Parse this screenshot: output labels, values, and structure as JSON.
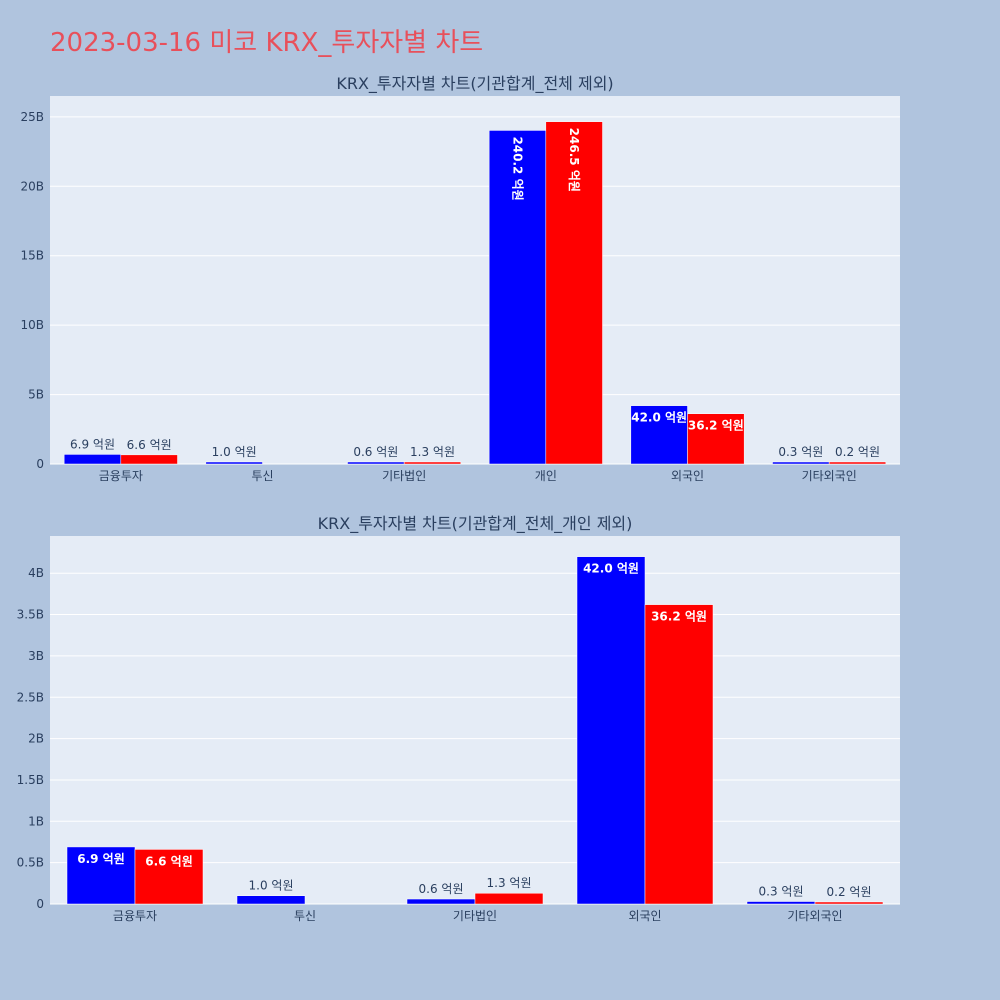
{
  "page": {
    "title": "2023-03-16 미코 KRX_투자자별 차트",
    "title_color": "#e8505b",
    "background": "#b0c4de"
  },
  "colors": {
    "series_1": "#0000ff",
    "series_2": "#ff0000",
    "plot_background": "#e5ecf6"
  },
  "chart_data": [
    {
      "type": "bar",
      "title": "KRX_투자자별 차트(기관합계_전체 제외)",
      "categories": [
        "금융투자",
        "투신",
        "기타법인",
        "개인",
        "외국인",
        "기타외국인"
      ],
      "series": [
        {
          "color": "#0000ff",
          "values": [
            690000000,
            100000000,
            60000000,
            24020000000,
            4200000000,
            30000000
          ],
          "labels": [
            "6.9 억원",
            "1.0 억원",
            "0.6 억원",
            "240.2 억원",
            "42.0 억원",
            "0.3 억원"
          ]
        },
        {
          "color": "#ff0000",
          "values": [
            660000000,
            0,
            130000000,
            24650000000,
            3620000000,
            20000000
          ],
          "labels": [
            "6.6 억원",
            "",
            "1.3 억원",
            "246.5 억원",
            "36.2 억원",
            "0.2 억원"
          ]
        }
      ],
      "ylim": [
        0,
        26500000000
      ],
      "yticks": [
        0,
        5000000000,
        10000000000,
        15000000000,
        20000000000,
        25000000000
      ],
      "ytick_labels": [
        "0",
        "5B",
        "10B",
        "15B",
        "20B",
        "25B"
      ],
      "grid": true,
      "legend": "none"
    },
    {
      "type": "bar",
      "title": "KRX_투자자별 차트(기관합계_전체_개인 제외)",
      "categories": [
        "금융투자",
        "투신",
        "기타법인",
        "외국인",
        "기타외국인"
      ],
      "series": [
        {
          "color": "#0000ff",
          "values": [
            690000000,
            100000000,
            60000000,
            4200000000,
            30000000
          ],
          "labels": [
            "6.9 억원",
            "1.0 억원",
            "0.6 억원",
            "42.0 억원",
            "0.3 억원"
          ]
        },
        {
          "color": "#ff0000",
          "values": [
            660000000,
            0,
            130000000,
            3620000000,
            20000000
          ],
          "labels": [
            "6.6 억원",
            "",
            "1.3 억원",
            "36.2 억원",
            "0.2 억원"
          ]
        }
      ],
      "ylim": [
        0,
        4450000000
      ],
      "yticks": [
        0,
        500000000,
        1000000000,
        1500000000,
        2000000000,
        2500000000,
        3000000000,
        3500000000,
        4000000000
      ],
      "ytick_labels": [
        "0",
        "0.5B",
        "1B",
        "1.5B",
        "2B",
        "2.5B",
        "3B",
        "3.5B",
        "4B"
      ],
      "grid": true,
      "legend": "none"
    }
  ]
}
